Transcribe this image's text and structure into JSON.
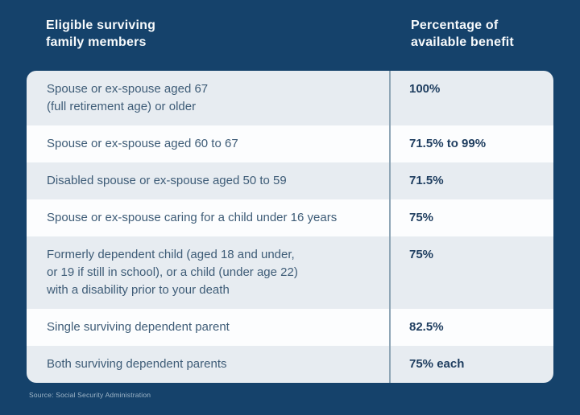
{
  "colors": {
    "background": "#15426B",
    "row_shaded": "#E7ECF1",
    "row_white": "#FCFDFE",
    "column_divider": "#8FA6B6",
    "header_text": "#F7FAFC",
    "member_text": "#3E5C77",
    "benefit_text": "#1E3D5F",
    "source_text": "#9FB6C8"
  },
  "header": {
    "left": "Eligible surviving\nfamily members",
    "right": "Percentage of\navailable benefit"
  },
  "table": {
    "rows": [
      {
        "member": "Spouse or ex-spouse aged 67\n(full retirement age) or older",
        "benefit": "100%"
      },
      {
        "member": "Spouse or ex-spouse aged 60 to 67",
        "benefit": "71.5% to 99%"
      },
      {
        "member": "Disabled spouse or ex-spouse aged 50 to 59",
        "benefit": "71.5%"
      },
      {
        "member": "Spouse or ex-spouse caring for a child under 16 years",
        "benefit": "75%"
      },
      {
        "member": "Formerly dependent child (aged 18 and under,\nor 19 if still in school), or a child (under age 22)\nwith a disability prior to your death",
        "benefit": "75%"
      },
      {
        "member": "Single surviving dependent parent",
        "benefit": "82.5%"
      },
      {
        "member": "Both surviving dependent parents",
        "benefit": "75% each"
      }
    ]
  },
  "source": "Source: Social Security Administration",
  "chart_data": {
    "type": "table",
    "title": "",
    "columns": [
      "Eligible surviving family members",
      "Percentage of available benefit"
    ],
    "rows": [
      [
        "Spouse or ex-spouse aged 67 (full retirement age) or older",
        "100%"
      ],
      [
        "Spouse or ex-spouse aged 60 to 67",
        "71.5% to 99%"
      ],
      [
        "Disabled spouse or ex-spouse aged 50 to 59",
        "71.5%"
      ],
      [
        "Spouse or ex-spouse caring for a child under 16 years",
        "75%"
      ],
      [
        "Formerly dependent child (aged 18 and under, or 19 if still in school), or a child (under age 22) with a disability prior to your death",
        "75%"
      ],
      [
        "Single surviving dependent parent",
        "82.5%"
      ],
      [
        "Both surviving dependent parents",
        "75% each"
      ]
    ],
    "source": "Source: Social Security Administration",
    "layout": "two-column table, alternating shaded rows, vertical divider between columns"
  }
}
